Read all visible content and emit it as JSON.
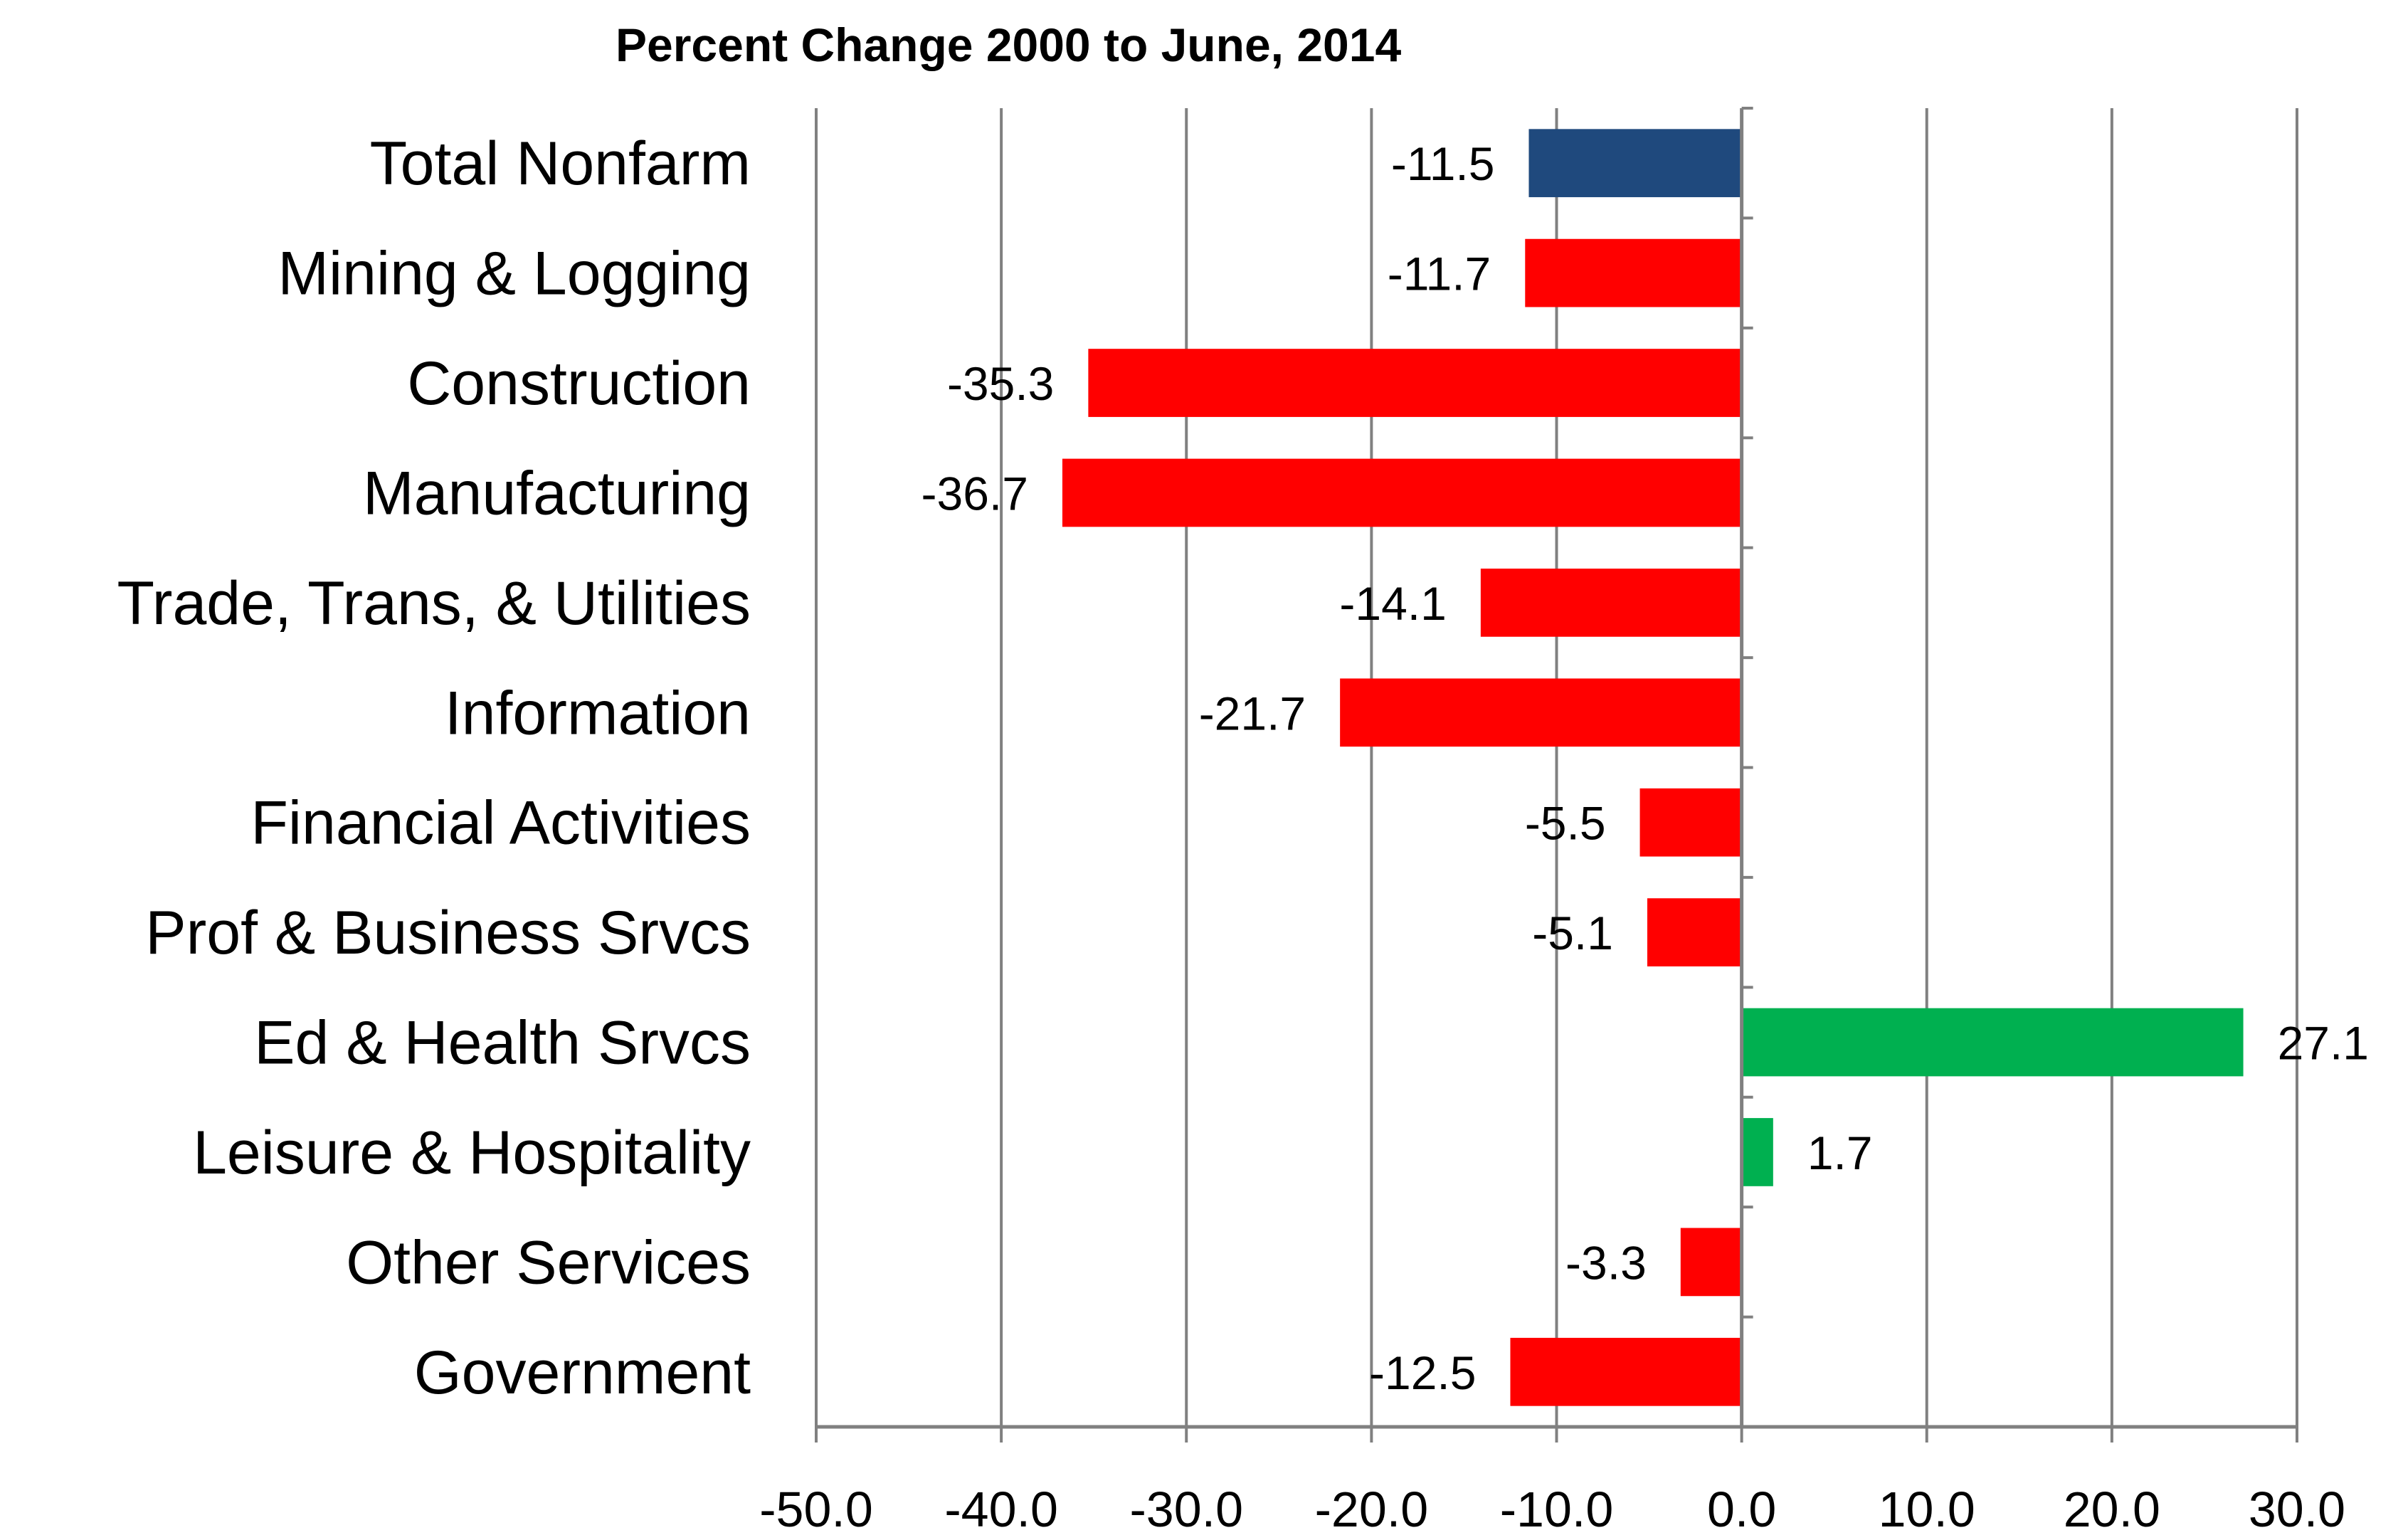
{
  "chart_data": {
    "type": "bar",
    "orientation": "horizontal",
    "title": "Percent Change 2000 to June, 2014",
    "categories": [
      "Total Nonfarm",
      "Mining & Logging",
      "Construction",
      "Manufacturing",
      "Trade, Trans, & Utilities",
      "Information",
      "Financial Activities",
      "Prof & Business Srvcs",
      "Ed & Health Srvcs",
      "Leisure & Hospitality",
      "Other Services",
      "Government"
    ],
    "values": [
      -11.5,
      -11.7,
      -35.3,
      -36.7,
      -14.1,
      -21.7,
      -5.5,
      -5.1,
      27.1,
      1.7,
      -3.3,
      -12.5
    ],
    "value_labels": [
      "-11.5",
      "-11.7",
      "-35.3",
      "-36.7",
      "-14.1",
      "-21.7",
      "-5.5",
      "-5.1",
      "27.1",
      "1.7",
      "-3.3",
      "-12.5"
    ],
    "xlim": [
      -50,
      30
    ],
    "x_ticks": [
      "-50.0",
      "-40.0",
      "-30.0",
      "-20.0",
      "-10.0",
      "0.0",
      "10.0",
      "20.0",
      "30.0"
    ],
    "x_tick_values": [
      -50,
      -40,
      -30,
      -20,
      -10,
      0,
      10,
      20,
      30
    ],
    "grid": "vertical",
    "legend": "none",
    "colors": {
      "total": "#1F497D",
      "negative": "#FF0000",
      "positive": "#00B050",
      "gridline": "#808080",
      "axis": "#808080"
    }
  }
}
